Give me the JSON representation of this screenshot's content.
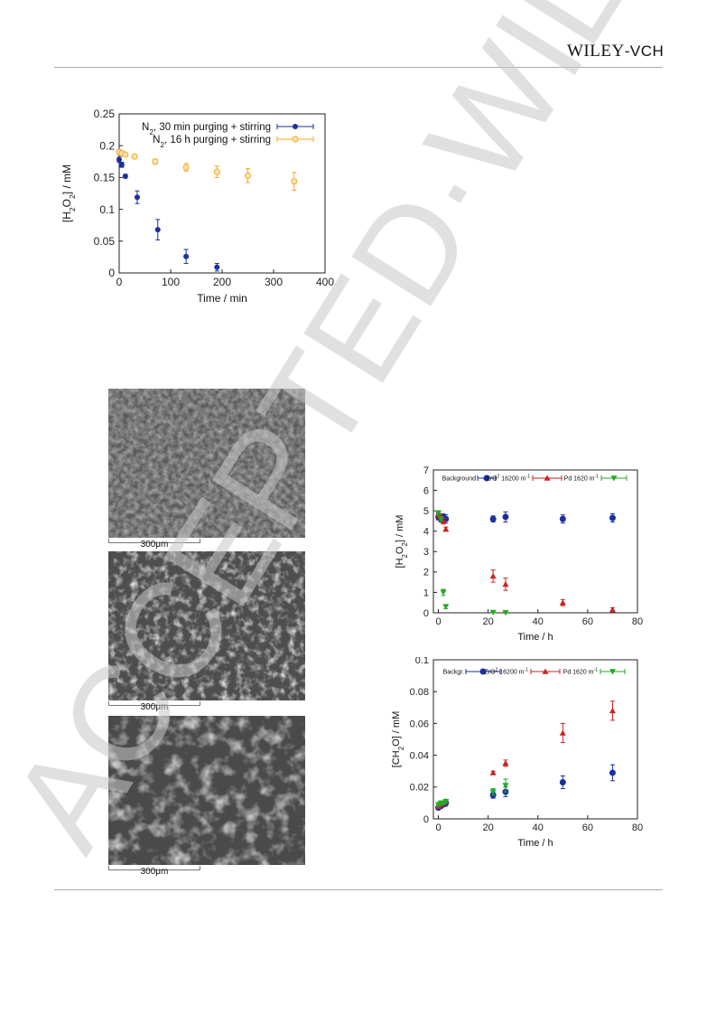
{
  "header": {
    "logo_main": "WILEY",
    "logo_suffix": "-VCH"
  },
  "watermark": {
    "text": "ACCEPTED·WILEY-VCH"
  },
  "figure_top": {
    "chart_data": {
      "type": "scatter",
      "ylabel_parts": [
        "[H",
        "2",
        "O",
        "2",
        "] / mM"
      ],
      "xlabel": "Time / min",
      "xlim": [
        0,
        400
      ],
      "ylim": [
        0,
        0.25
      ],
      "xticks": [
        "0",
        "100",
        "200",
        "300",
        "400"
      ],
      "yticks": [
        "0",
        "0.05",
        "0.1",
        "0.15",
        "0.2",
        "0.25"
      ],
      "legend_position": "top-right",
      "series": [
        {
          "name_parts": [
            "N",
            "2",
            ", 30 min purging + stirring"
          ],
          "color": "#1a2fa0",
          "marker": "circle-filled",
          "x": [
            0,
            5,
            12,
            35,
            75,
            130,
            190
          ],
          "y": [
            0.178,
            0.17,
            0.152,
            0.119,
            0.068,
            0.026,
            0.009
          ],
          "err": [
            0.004,
            0.004,
            0.003,
            0.01,
            0.016,
            0.011,
            0.006
          ]
        },
        {
          "name_parts": [
            "N",
            "2",
            ", 16 h purging + stirring"
          ],
          "color": "#f5a623",
          "marker": "circle-open",
          "x": [
            0,
            5,
            12,
            30,
            70,
            130,
            190,
            250,
            340
          ],
          "y": [
            0.19,
            0.188,
            0.186,
            0.183,
            0.175,
            0.166,
            0.159,
            0.153,
            0.144
          ],
          "err": [
            0.004,
            0.004,
            0.003,
            0.003,
            0.004,
            0.006,
            0.009,
            0.011,
            0.014
          ]
        }
      ]
    }
  },
  "sem_images": {
    "scale_label": "300μm",
    "images": [
      "sem-image-1",
      "sem-image-2",
      "sem-image-3"
    ]
  },
  "figure_mid": {
    "chart_data": {
      "type": "scatter",
      "ylabel_parts": [
        "[H",
        "2",
        "O",
        "2",
        "] / mM"
      ],
      "xlabel": "Time / h",
      "xlim": [
        -2,
        80
      ],
      "ylim": [
        0,
        7
      ],
      "xticks": [
        "0",
        "20",
        "40",
        "60",
        "80"
      ],
      "yticks": [
        "0",
        "1",
        "2",
        "3",
        "4",
        "5",
        "6",
        "7"
      ],
      "legend_position": "top",
      "series": [
        {
          "name_parts": [
            "Background"
          ],
          "color": "#1a2fa0",
          "marker": "circle",
          "x": [
            0,
            1,
            2,
            3,
            22,
            27,
            50,
            70
          ],
          "y": [
            4.7,
            4.6,
            4.7,
            4.6,
            4.6,
            4.7,
            4.6,
            4.65
          ],
          "err": [
            0.15,
            0.15,
            0.15,
            0.2,
            0.15,
            0.25,
            0.2,
            0.2
          ]
        },
        {
          "name_parts": [
            "ZrO",
            "2",
            " 16200 m",
            "-1"
          ],
          "color": "#cc2222",
          "marker": "triangle-up",
          "x": [
            0,
            1,
            2,
            3,
            22,
            27,
            50,
            70
          ],
          "y": [
            4.8,
            4.7,
            4.5,
            4.1,
            1.8,
            1.4,
            0.5,
            0.15
          ],
          "err": [
            0.1,
            0.1,
            0.15,
            0.1,
            0.3,
            0.3,
            0.15,
            0.1
          ]
        },
        {
          "name_parts": [
            "Pd 1620 m",
            "-1"
          ],
          "color": "#22aa22",
          "marker": "triangle-down",
          "x": [
            0,
            1,
            2,
            3,
            22,
            27
          ],
          "y": [
            4.9,
            4.6,
            1.0,
            0.3,
            0.02,
            0.01
          ],
          "err": [
            0.1,
            0.1,
            0.15,
            0.1,
            0.02,
            0.02
          ]
        }
      ]
    }
  },
  "figure_bottom": {
    "chart_data": {
      "type": "scatter",
      "ylabel_parts": [
        "[CH",
        "2",
        "O] / mM"
      ],
      "xlabel": "Time / h",
      "xlim": [
        -2,
        80
      ],
      "ylim": [
        0,
        0.1
      ],
      "xticks": [
        "0",
        "20",
        "40",
        "60",
        "80"
      ],
      "yticks": [
        "0",
        "0.02",
        "0.04",
        "0.06",
        "0.08",
        "0.1"
      ],
      "legend_position": "top",
      "series": [
        {
          "name_parts": [
            "Backgr."
          ],
          "color": "#1a2fa0",
          "marker": "circle",
          "x": [
            0,
            1,
            2,
            3,
            22,
            27,
            50,
            70
          ],
          "y": [
            0.007,
            0.008,
            0.009,
            0.01,
            0.015,
            0.017,
            0.023,
            0.029
          ],
          "err": [
            0.001,
            0.001,
            0.001,
            0.002,
            0.002,
            0.003,
            0.004,
            0.005
          ]
        },
        {
          "name_parts": [
            "ZrO",
            "2",
            " 16200 m",
            "-1"
          ],
          "color": "#cc2222",
          "marker": "triangle-up",
          "x": [
            0,
            1,
            2,
            3,
            22,
            27,
            50,
            70
          ],
          "y": [
            0.008,
            0.009,
            0.01,
            0.011,
            0.029,
            0.035,
            0.054,
            0.068
          ],
          "err": [
            0.001,
            0.001,
            0.001,
            0.001,
            0.001,
            0.002,
            0.006,
            0.006
          ]
        },
        {
          "name_parts": [
            "Pd 1620 m",
            "-1"
          ],
          "color": "#22aa22",
          "marker": "triangle-down",
          "x": [
            0,
            1,
            2,
            3,
            22,
            27
          ],
          "y": [
            0.009,
            0.01,
            0.01,
            0.011,
            0.017,
            0.021
          ],
          "err": [
            0.001,
            0.001,
            0.001,
            0.001,
            0.002,
            0.004
          ]
        }
      ]
    }
  }
}
